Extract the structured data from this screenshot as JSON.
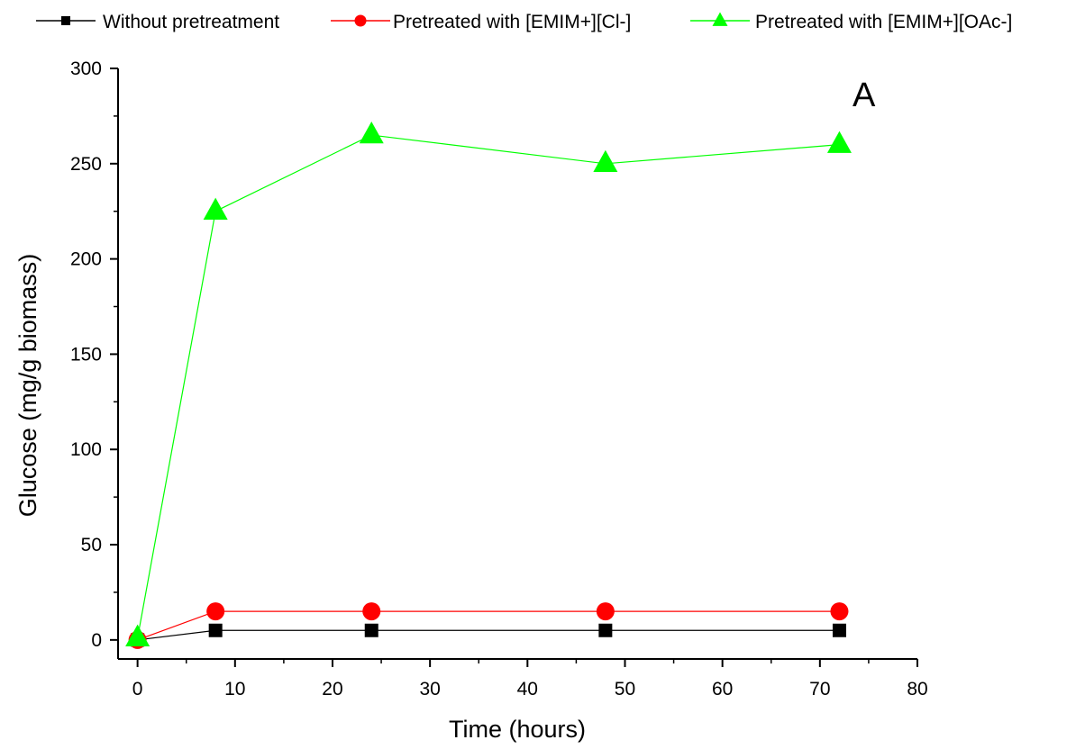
{
  "chart_data": {
    "type": "line",
    "panel_label": "A",
    "xlabel": "Time (hours)",
    "ylabel": "Glucose (mg/g biomass)",
    "xlim": [
      -2,
      80
    ],
    "ylim": [
      -10,
      300
    ],
    "xticks": [
      0,
      10,
      20,
      30,
      40,
      50,
      60,
      70,
      80
    ],
    "yticks": [
      0,
      50,
      100,
      150,
      200,
      250,
      300
    ],
    "legend_position": "top",
    "grid": false,
    "series": [
      {
        "name": "Without pretreatment",
        "color": "#000000",
        "marker": "square",
        "x": [
          0,
          8,
          24,
          48,
          72
        ],
        "y": [
          0,
          5,
          5,
          5,
          5
        ]
      },
      {
        "name": "Pretreated with [EMIM+][Cl-]",
        "color": "#ff0000",
        "marker": "circle",
        "x": [
          0,
          8,
          24,
          48,
          72
        ],
        "y": [
          0,
          15,
          15,
          15,
          15
        ]
      },
      {
        "name": "Pretreated with [EMIM+][OAc-]",
        "color": "#00ff00",
        "marker": "triangle",
        "x": [
          0,
          8,
          24,
          48,
          72
        ],
        "y": [
          1,
          225,
          265,
          250,
          260
        ]
      }
    ]
  }
}
